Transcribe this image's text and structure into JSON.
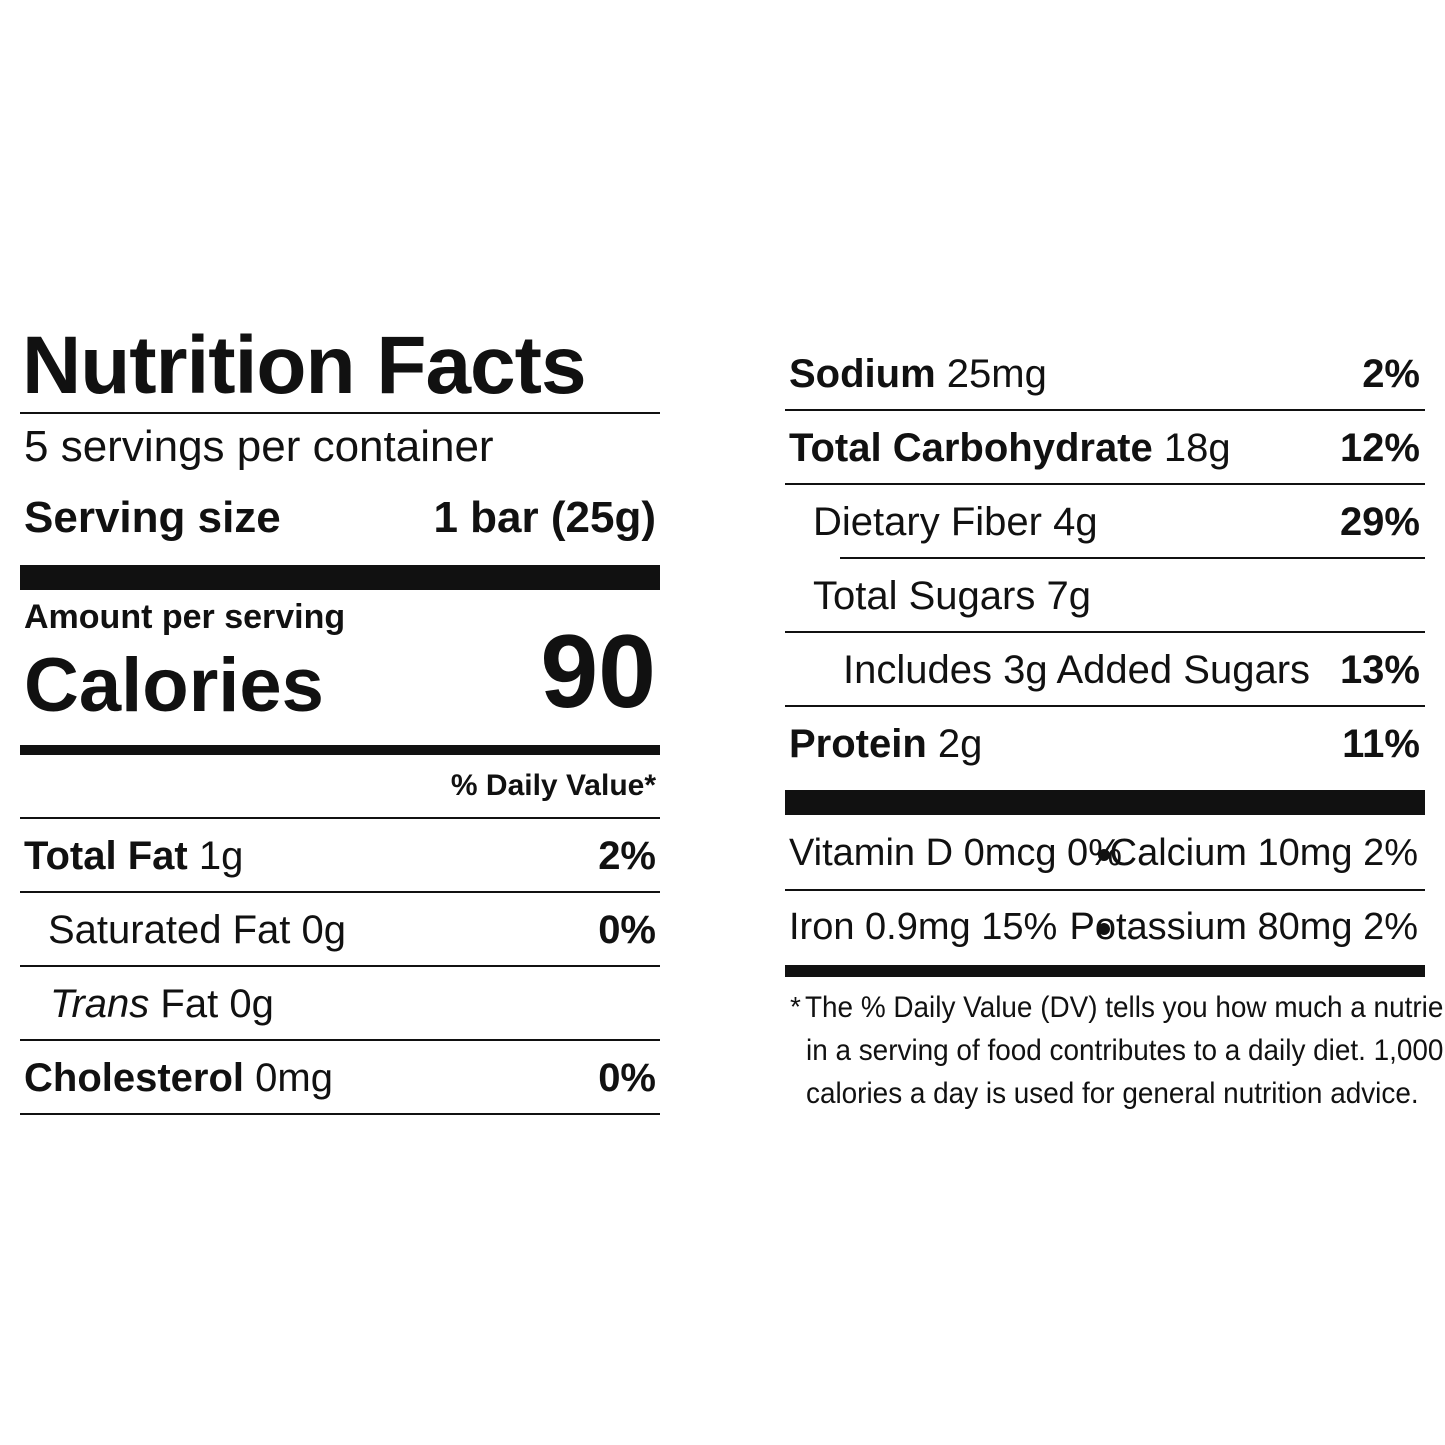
{
  "title": "Nutrition Facts",
  "servings": "5 servings per container",
  "serving_size": {
    "label": "Serving size",
    "value": "1 bar (25g)"
  },
  "amount_per_serving": "Amount per serving",
  "calories": {
    "label": "Calories",
    "value": 90
  },
  "dv_header": "% Daily Value*",
  "left_rows": [
    {
      "name": "Total Fat",
      "amount": "1g",
      "dv": "2%"
    },
    {
      "name": "Saturated Fat",
      "amount": "0g",
      "dv": "0%"
    },
    {
      "italic": "Trans",
      "name": "Fat",
      "amount": "0g"
    },
    {
      "name": "Cholesterol",
      "amount": "0mg",
      "dv": "0%"
    }
  ],
  "right_rows": [
    {
      "name": "Sodium",
      "amount": "25mg",
      "dv": "2%"
    },
    {
      "name": "Total Carbohydrate",
      "amount": "18g",
      "dv": "12%"
    },
    {
      "name": "Dietary Fiber",
      "amount": "4g",
      "dv": "29%"
    },
    {
      "name": "Total Sugars",
      "amount": "7g"
    },
    {
      "name": "Includes 3g Added Sugars",
      "dv": "13%"
    },
    {
      "name": "Protein",
      "amount": "2g",
      "dv": "11%"
    }
  ],
  "vitamins": [
    [
      "Vitamin D 0mcg 0%",
      "Calcium 10mg 2%"
    ],
    [
      "Iron 0.9mg 15%",
      "Potassium 80mg 2%"
    ]
  ],
  "footnote": {
    "marker": "*",
    "lines": [
      "The % Daily Value (DV) tells you how much a nutrient",
      "in a serving of food contributes to a daily diet. 1,000",
      "calories a day is used for general nutrition advice."
    ]
  }
}
